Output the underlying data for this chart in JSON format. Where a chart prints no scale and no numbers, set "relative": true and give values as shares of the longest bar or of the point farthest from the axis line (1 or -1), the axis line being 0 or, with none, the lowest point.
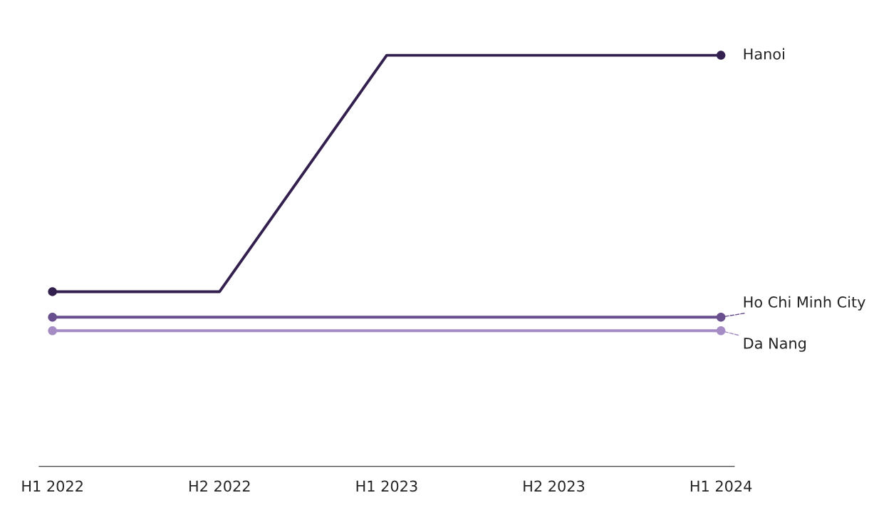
{
  "chart_data": {
    "type": "line",
    "relative": true,
    "categories": [
      "H1 2022",
      "H2 2022",
      "H1 2023",
      "H2 2023",
      "H1 2024"
    ],
    "series": [
      {
        "name": "Hanoi",
        "color": "#33204f",
        "values": [
          0.425,
          0.425,
          1,
          1,
          1
        ]
      },
      {
        "name": "Ho Chi Minh City",
        "color": "#6a4f8f",
        "values": [
          0.363,
          0.363,
          0.363,
          0.363,
          0.363
        ]
      },
      {
        "name": "Da Nang",
        "color": "#a58cc4",
        "values": [
          0.33,
          0.33,
          0.33,
          0.33,
          0.33
        ]
      }
    ],
    "line_style": "solid",
    "grid": false,
    "legend": "right"
  }
}
